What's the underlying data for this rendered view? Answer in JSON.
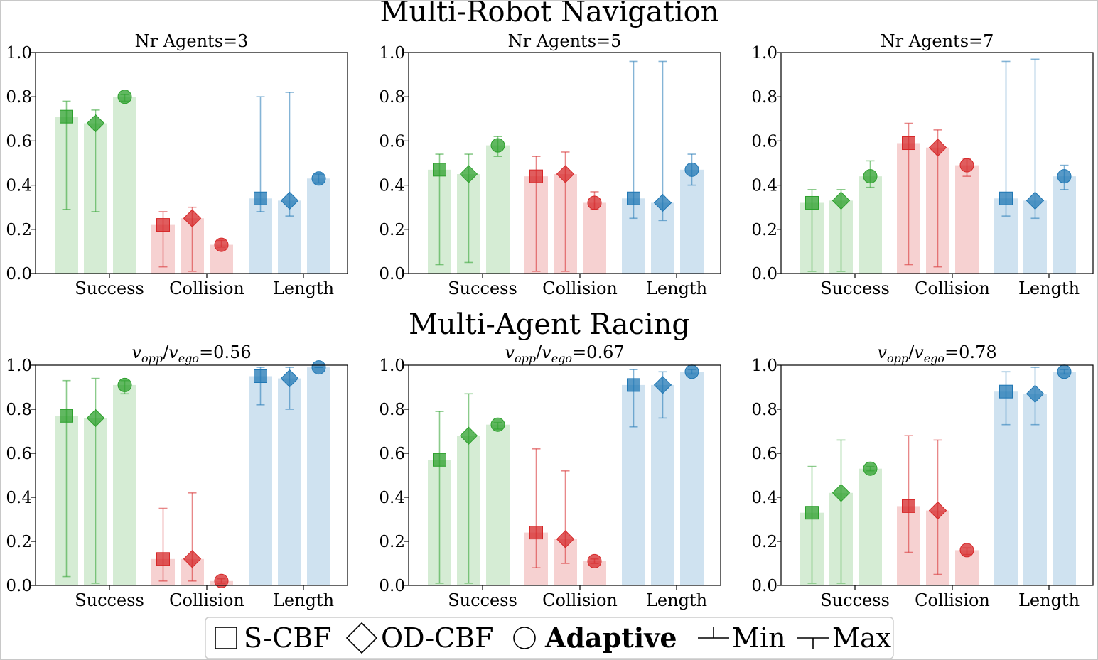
{
  "sections": [
    {
      "title": "Multi-Robot Navigation"
    },
    {
      "title": "Multi-Agent Racing"
    }
  ],
  "colors": {
    "success": "#2ca02c",
    "collision": "#d62728",
    "length": "#1f77b4",
    "success_bar": "#d5ecd4",
    "collision_bar": "#f6d1d1",
    "length_bar": "#cfe2f0"
  },
  "legend": {
    "items": [
      {
        "marker": "square",
        "label": "S-CBF",
        "bold": false
      },
      {
        "marker": "diamond",
        "label": "OD-CBF",
        "bold": false
      },
      {
        "marker": "circle",
        "label": "Adaptive",
        "bold": true
      },
      {
        "marker": "min",
        "label": "Min",
        "bold": false
      },
      {
        "marker": "max",
        "label": "Max",
        "bold": false
      }
    ]
  },
  "chart_data": [
    {
      "type": "bar",
      "section": 0,
      "title": "Nr Agents=3",
      "categories": [
        "Success",
        "Collision",
        "Length"
      ],
      "methods": [
        "S-CBF",
        "OD-CBF",
        "Adaptive"
      ],
      "yticks": [
        "0.0",
        "0.2",
        "0.4",
        "0.6",
        "0.8",
        "1.0"
      ],
      "ylim": [
        0,
        1
      ],
      "values": [
        [
          0.71,
          0.68,
          0.8
        ],
        [
          0.22,
          0.25,
          0.13
        ],
        [
          0.34,
          0.33,
          0.43
        ]
      ],
      "min": [
        [
          0.29,
          0.28,
          0.78
        ],
        [
          0.03,
          0.01,
          0.12
        ],
        [
          0.28,
          0.26,
          0.41
        ]
      ],
      "max": [
        [
          0.78,
          0.74,
          0.81
        ],
        [
          0.28,
          0.3,
          0.15
        ],
        [
          0.8,
          0.82,
          0.45
        ]
      ]
    },
    {
      "type": "bar",
      "section": 0,
      "title": "Nr Agents=5",
      "categories": [
        "Success",
        "Collision",
        "Length"
      ],
      "methods": [
        "S-CBF",
        "OD-CBF",
        "Adaptive"
      ],
      "yticks": [
        "0.0",
        "0.2",
        "0.4",
        "0.6",
        "0.8",
        "1.0"
      ],
      "ylim": [
        0,
        1
      ],
      "values": [
        [
          0.47,
          0.45,
          0.58
        ],
        [
          0.44,
          0.45,
          0.32
        ],
        [
          0.34,
          0.32,
          0.47
        ]
      ],
      "min": [
        [
          0.04,
          0.05,
          0.53
        ],
        [
          0.01,
          0.01,
          0.29
        ],
        [
          0.25,
          0.24,
          0.4
        ]
      ],
      "max": [
        [
          0.54,
          0.54,
          0.62
        ],
        [
          0.53,
          0.55,
          0.37
        ],
        [
          0.96,
          0.96,
          0.54
        ]
      ]
    },
    {
      "type": "bar",
      "section": 0,
      "title": "Nr Agents=7",
      "categories": [
        "Success",
        "Collision",
        "Length"
      ],
      "methods": [
        "S-CBF",
        "OD-CBF",
        "Adaptive"
      ],
      "yticks": [
        "0.0",
        "0.2",
        "0.4",
        "0.6",
        "0.8",
        "1.0"
      ],
      "ylim": [
        0,
        1
      ],
      "values": [
        [
          0.32,
          0.33,
          0.44
        ],
        [
          0.59,
          0.57,
          0.49
        ],
        [
          0.34,
          0.33,
          0.44
        ]
      ],
      "min": [
        [
          0.01,
          0.01,
          0.39
        ],
        [
          0.04,
          0.03,
          0.44
        ],
        [
          0.26,
          0.25,
          0.38
        ]
      ],
      "max": [
        [
          0.38,
          0.38,
          0.51
        ],
        [
          0.68,
          0.65,
          0.52
        ],
        [
          0.96,
          0.97,
          0.49
        ]
      ]
    },
    {
      "type": "bar",
      "section": 1,
      "title_ratio": "0.56",
      "categories": [
        "Success",
        "Collision",
        "Length"
      ],
      "methods": [
        "S-CBF",
        "OD-CBF",
        "Adaptive"
      ],
      "yticks": [
        "0.0",
        "0.2",
        "0.4",
        "0.6",
        "0.8",
        "1.0"
      ],
      "ylim": [
        0,
        1
      ],
      "values": [
        [
          0.77,
          0.76,
          0.91
        ],
        [
          0.12,
          0.12,
          0.02
        ],
        [
          0.95,
          0.94,
          0.99
        ]
      ],
      "min": [
        [
          0.04,
          0.01,
          0.87
        ],
        [
          0.02,
          0.02,
          0.01
        ],
        [
          0.82,
          0.8,
          0.99
        ]
      ],
      "max": [
        [
          0.93,
          0.94,
          0.93
        ],
        [
          0.35,
          0.42,
          0.03
        ],
        [
          0.99,
          0.99,
          0.99
        ]
      ]
    },
    {
      "type": "bar",
      "section": 1,
      "title_ratio": "0.67",
      "categories": [
        "Success",
        "Collision",
        "Length"
      ],
      "methods": [
        "S-CBF",
        "OD-CBF",
        "Adaptive"
      ],
      "yticks": [
        "0.0",
        "0.2",
        "0.4",
        "0.6",
        "0.8",
        "1.0"
      ],
      "ylim": [
        0,
        1
      ],
      "values": [
        [
          0.57,
          0.68,
          0.73
        ],
        [
          0.24,
          0.21,
          0.11
        ],
        [
          0.91,
          0.91,
          0.97
        ]
      ],
      "min": [
        [
          0.01,
          0.01,
          0.71
        ],
        [
          0.08,
          0.1,
          0.1
        ],
        [
          0.72,
          0.76,
          0.96
        ]
      ],
      "max": [
        [
          0.79,
          0.87,
          0.74
        ],
        [
          0.62,
          0.52,
          0.12
        ],
        [
          0.98,
          0.97,
          0.98
        ]
      ]
    },
    {
      "type": "bar",
      "section": 1,
      "title_ratio": "0.78",
      "categories": [
        "Success",
        "Collision",
        "Length"
      ],
      "methods": [
        "S-CBF",
        "OD-CBF",
        "Adaptive"
      ],
      "yticks": [
        "0.0",
        "0.2",
        "0.4",
        "0.6",
        "0.8",
        "1.0"
      ],
      "ylim": [
        0,
        1
      ],
      "values": [
        [
          0.33,
          0.42,
          0.53
        ],
        [
          0.36,
          0.34,
          0.16
        ],
        [
          0.88,
          0.87,
          0.97
        ]
      ],
      "min": [
        [
          0.01,
          0.01,
          0.52
        ],
        [
          0.15,
          0.05,
          0.14
        ],
        [
          0.73,
          0.73,
          0.96
        ]
      ],
      "max": [
        [
          0.54,
          0.66,
          0.54
        ],
        [
          0.68,
          0.66,
          0.17
        ],
        [
          0.97,
          0.99,
          0.98
        ]
      ]
    }
  ]
}
